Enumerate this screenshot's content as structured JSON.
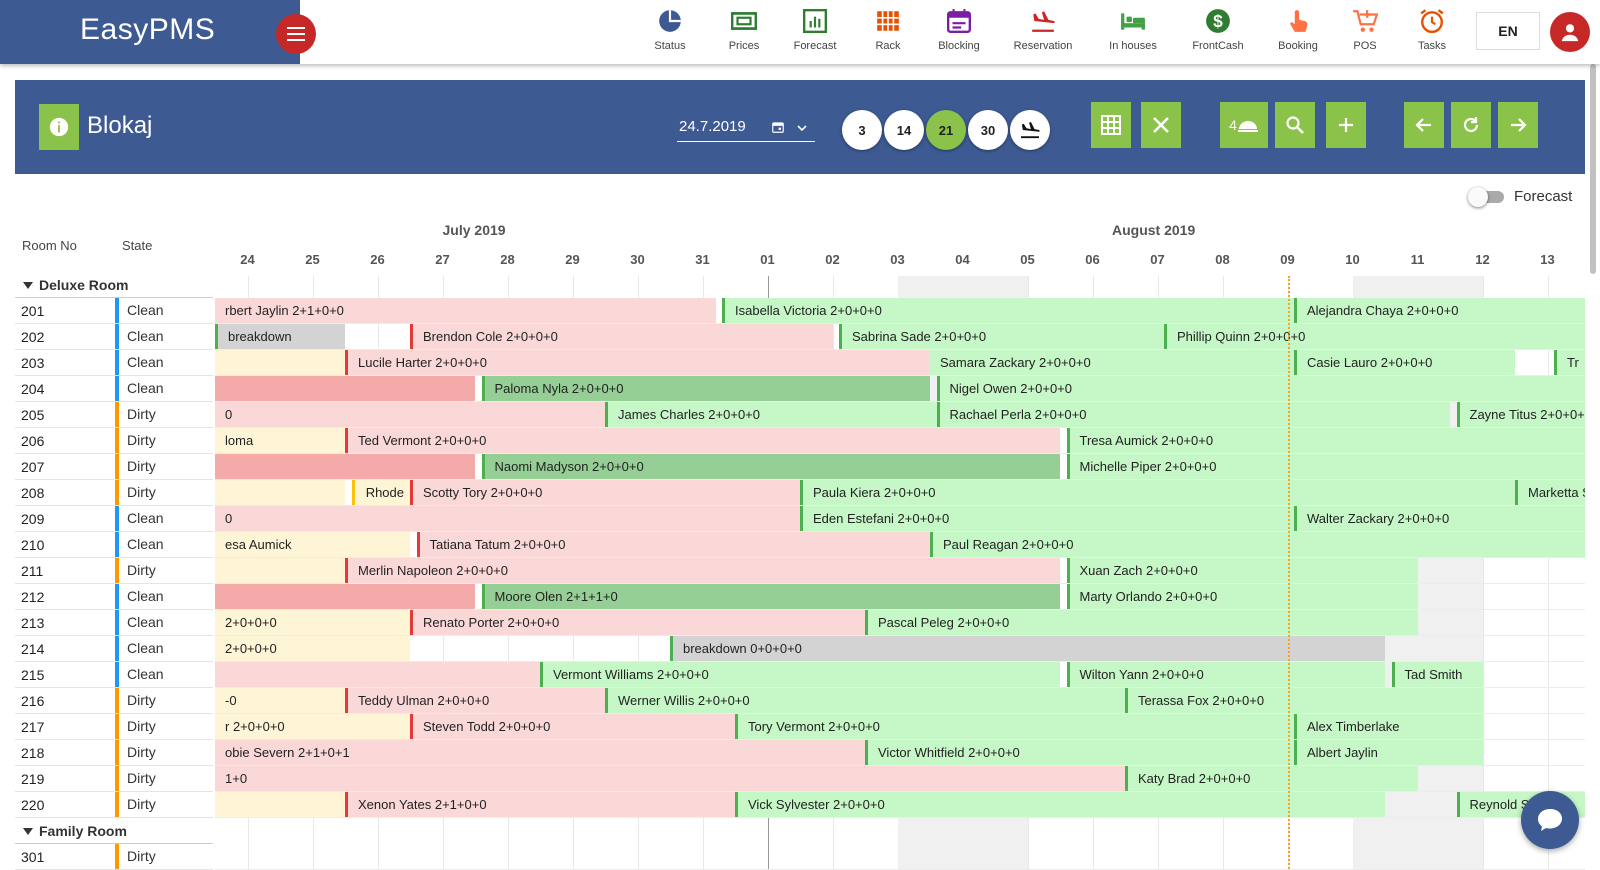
{
  "app": {
    "title": "EasyPMS",
    "language": "EN"
  },
  "nav": [
    {
      "label": "Status",
      "icon": "pie-chart-icon",
      "color": "#3d5a93"
    },
    {
      "label": "Prices",
      "icon": "prices-icon",
      "color": "#2e7d32"
    },
    {
      "label": "Forecast",
      "icon": "bar-chart-icon",
      "color": "#2e7d32"
    },
    {
      "label": "Rack",
      "icon": "rack-grid-icon",
      "color": "#e65100"
    },
    {
      "label": "Blocking",
      "icon": "calendar-icon",
      "color": "#7b1fa2"
    },
    {
      "label": "Reservation",
      "icon": "plane-landing-icon",
      "color": "#c62828"
    },
    {
      "label": "In houses",
      "icon": "bed-icon",
      "color": "#43a047"
    },
    {
      "label": "FrontCash",
      "icon": "dollar-icon",
      "color": "#2e7d32"
    },
    {
      "label": "Booking",
      "icon": "hand-tap-icon",
      "color": "#ff7043"
    },
    {
      "label": "POS",
      "icon": "cart-icon",
      "color": "#ff7043"
    },
    {
      "label": "Tasks",
      "icon": "alarm-clock-icon",
      "color": "#e65100"
    }
  ],
  "panel": {
    "title": "Blokaj",
    "date": "24.7.2019",
    "day_buttons": [
      "3",
      "14",
      "21",
      "30"
    ],
    "selected_days": "21",
    "beds_label": "4"
  },
  "forecast_label": "Forecast",
  "columns": {
    "room": "Room No",
    "state": "State"
  },
  "months": [
    {
      "label": "July 2019"
    },
    {
      "label": "August 2019"
    }
  ],
  "days": [
    "24",
    "25",
    "26",
    "27",
    "28",
    "29",
    "30",
    "31",
    "01",
    "02",
    "03",
    "04",
    "05",
    "06",
    "07",
    "08",
    "09",
    "10",
    "11",
    "12",
    "13"
  ],
  "groups": [
    {
      "name": "Deluxe Room"
    },
    {
      "name": "Family Room"
    }
  ],
  "rooms": [
    {
      "no": "201",
      "state": "Clean"
    },
    {
      "no": "202",
      "state": "Clean"
    },
    {
      "no": "203",
      "state": "Clean"
    },
    {
      "no": "204",
      "state": "Clean"
    },
    {
      "no": "205",
      "state": "Dirty"
    },
    {
      "no": "206",
      "state": "Dirty"
    },
    {
      "no": "207",
      "state": "Dirty"
    },
    {
      "no": "208",
      "state": "Dirty"
    },
    {
      "no": "209",
      "state": "Clean"
    },
    {
      "no": "210",
      "state": "Clean"
    },
    {
      "no": "211",
      "state": "Dirty"
    },
    {
      "no": "212",
      "state": "Clean"
    },
    {
      "no": "213",
      "state": "Clean"
    },
    {
      "no": "214",
      "state": "Clean"
    },
    {
      "no": "215",
      "state": "Clean"
    },
    {
      "no": "216",
      "state": "Dirty"
    },
    {
      "no": "217",
      "state": "Dirty"
    },
    {
      "no": "218",
      "state": "Dirty"
    },
    {
      "no": "219",
      "state": "Dirty"
    },
    {
      "no": "220",
      "state": "Dirty"
    },
    {
      "no": "301",
      "state": "Dirty"
    }
  ],
  "reservations": [
    {
      "room": 0,
      "from": -0.5,
      "to": 7.2,
      "label": "rbert Jaylin 2+1+0+0",
      "type": "past"
    },
    {
      "room": 0,
      "from": 7.3,
      "to": 16.1,
      "label": "Isabella Victoria 2+0+0+0",
      "type": "fut",
      "edge": "bg"
    },
    {
      "room": 0,
      "from": 16.1,
      "to": 21,
      "label": "Alejandra Chaya 2+0+0+0",
      "type": "fut",
      "edge": "bg"
    },
    {
      "room": 1,
      "from": -0.5,
      "to": 1.5,
      "label": "breakdown",
      "type": "maint",
      "edge": "bg"
    },
    {
      "room": 1,
      "from": 2.5,
      "to": 9,
      "label": "Brendon Cole 2+0+0+0",
      "type": "past",
      "edge": "bl"
    },
    {
      "room": 1,
      "from": 9.1,
      "to": 14.1,
      "label": "Sabrina Sade 2+0+0+0",
      "type": "fut",
      "edge": "bg"
    },
    {
      "room": 1,
      "from": 14.1,
      "to": 21,
      "label": "Phillip Quinn 2+0+0+0",
      "type": "fut",
      "edge": "bg"
    },
    {
      "room": 2,
      "from": -0.5,
      "to": 1.5,
      "label": "",
      "type": "opt"
    },
    {
      "room": 2,
      "from": 1.5,
      "to": 10.5,
      "label": "Lucile Harter 2+0+0+0",
      "type": "past",
      "edge": "bl"
    },
    {
      "room": 2,
      "from": 10.5,
      "to": 16.1,
      "label": "Samara Zackary 2+0+0+0",
      "type": "fut"
    },
    {
      "room": 2,
      "from": 16.1,
      "to": 19.5,
      "label": "Casie Lauro 2+0+0+0",
      "type": "fut",
      "edge": "bg"
    },
    {
      "room": 2,
      "from": 20.1,
      "to": 21,
      "label": "Tr",
      "type": "fut",
      "edge": "bg"
    },
    {
      "room": 3,
      "from": -0.5,
      "to": 3.5,
      "label": "",
      "type": "dark"
    },
    {
      "room": 3,
      "from": 3.6,
      "to": 10.5,
      "label": "Paloma Nyla 2+0+0+0",
      "type": "checked",
      "edge": "bg"
    },
    {
      "room": 3,
      "from": 10.6,
      "to": 21,
      "label": "Nigel Owen 2+0+0+0",
      "type": "fut",
      "edge": "bg"
    },
    {
      "room": 4,
      "from": -0.5,
      "to": 5.5,
      "label": "0",
      "type": "past"
    },
    {
      "room": 4,
      "from": 5.5,
      "to": 10.6,
      "label": "James Charles 2+0+0+0",
      "type": "fut",
      "edge": "bg"
    },
    {
      "room": 4,
      "from": 10.6,
      "to": 18.5,
      "label": "Rachael Perla 2+0+0+0",
      "type": "fut",
      "edge": "bg"
    },
    {
      "room": 4,
      "from": 18.6,
      "to": 21,
      "label": "Zayne Titus 2+0+0+0",
      "type": "fut",
      "edge": "bg"
    },
    {
      "room": 5,
      "from": -0.5,
      "to": 1.5,
      "label": "loma",
      "type": "opt"
    },
    {
      "room": 5,
      "from": 1.5,
      "to": 12.5,
      "label": "Ted Vermont 2+0+0+0",
      "type": "past",
      "edge": "bl"
    },
    {
      "room": 5,
      "from": 12.6,
      "to": 21,
      "label": "Tresa Aumick 2+0+0+0",
      "type": "fut",
      "edge": "bg"
    },
    {
      "room": 6,
      "from": -0.5,
      "to": 3.5,
      "label": "",
      "type": "dark"
    },
    {
      "room": 6,
      "from": 3.6,
      "to": 12.5,
      "label": "Naomi Madyson 2+0+0+0",
      "type": "checked",
      "edge": "bg"
    },
    {
      "room": 6,
      "from": 12.6,
      "to": 21,
      "label": "Michelle Piper 2+0+0+0",
      "type": "fut",
      "edge": "bg"
    },
    {
      "room": 7,
      "from": -0.5,
      "to": 1.5,
      "label": "",
      "type": "opt"
    },
    {
      "room": 7,
      "from": 1.6,
      "to": 2.5,
      "label": "Rhode",
      "type": "opt",
      "edge": "by",
      "align": "right"
    },
    {
      "room": 7,
      "from": 2.5,
      "to": 8.5,
      "label": "Scotty Tory 2+0+0+0",
      "type": "past",
      "edge": "bl"
    },
    {
      "room": 7,
      "from": 8.5,
      "to": 19.5,
      "label": "Paula Kiera 2+0+0+0",
      "type": "fut",
      "edge": "bg"
    },
    {
      "room": 7,
      "from": 19.5,
      "to": 21,
      "label": "Marketta Spri",
      "type": "fut",
      "edge": "bg"
    },
    {
      "room": 8,
      "from": -0.5,
      "to": 8.5,
      "label": "0",
      "type": "past"
    },
    {
      "room": 8,
      "from": 8.5,
      "to": 16.1,
      "label": "Eden Estefani 2+0+0+0",
      "type": "fut",
      "edge": "bg"
    },
    {
      "room": 8,
      "from": 16.1,
      "to": 21,
      "label": "Walter Zackary 2+0+0+0",
      "type": "fut",
      "edge": "bg"
    },
    {
      "room": 9,
      "from": -0.5,
      "to": 2.5,
      "label": "esa Aumick",
      "type": "opt"
    },
    {
      "room": 9,
      "from": 2.6,
      "to": 10.5,
      "label": "Tatiana Tatum 2+0+0+0",
      "type": "past",
      "edge": "bl"
    },
    {
      "room": 9,
      "from": 10.5,
      "to": 21,
      "label": "Paul Reagan 2+0+0+0",
      "type": "fut",
      "edge": "bg"
    },
    {
      "room": 10,
      "from": -0.5,
      "to": 1.5,
      "label": "",
      "type": "opt"
    },
    {
      "room": 10,
      "from": 1.5,
      "to": 12.5,
      "label": "Merlin Napoleon 2+0+0+0",
      "type": "past",
      "edge": "bl"
    },
    {
      "room": 10,
      "from": 12.6,
      "to": 18,
      "label": "Xuan Zach 2+0+0+0",
      "type": "fut",
      "edge": "bg"
    },
    {
      "room": 11,
      "from": -0.5,
      "to": 3.5,
      "label": "",
      "type": "dark"
    },
    {
      "room": 11,
      "from": 3.6,
      "to": 12.5,
      "label": "Moore Olen 2+1+1+0",
      "type": "checked",
      "edge": "bg"
    },
    {
      "room": 11,
      "from": 12.6,
      "to": 18,
      "label": "Marty Orlando 2+0+0+0",
      "type": "fut",
      "edge": "bg"
    },
    {
      "room": 12,
      "from": -0.5,
      "to": 2.5,
      "label": "2+0+0+0",
      "type": "opt"
    },
    {
      "room": 12,
      "from": 2.5,
      "to": 9.5,
      "label": "Renato Porter 2+0+0+0",
      "type": "past",
      "edge": "bl"
    },
    {
      "room": 12,
      "from": 9.5,
      "to": 18,
      "label": "Pascal Peleg 2+0+0+0",
      "type": "fut",
      "edge": "bg"
    },
    {
      "room": 13,
      "from": -0.5,
      "to": 2.5,
      "label": "2+0+0+0",
      "type": "opt"
    },
    {
      "room": 13,
      "from": 6.5,
      "to": 17.5,
      "label": "breakdown 0+0+0+0",
      "type": "maint",
      "edge": "bg"
    },
    {
      "room": 14,
      "from": -0.5,
      "to": 4.5,
      "label": "",
      "type": "past"
    },
    {
      "room": 14,
      "from": 4.5,
      "to": 12.5,
      "label": "Vermont Williams 2+0+0+0",
      "type": "fut",
      "edge": "bg"
    },
    {
      "room": 14,
      "from": 12.6,
      "to": 17.5,
      "label": "Wilton Yann 2+0+0+0",
      "type": "fut",
      "edge": "bg"
    },
    {
      "room": 14,
      "from": 17.6,
      "to": 19,
      "label": "Tad Smith",
      "type": "fut",
      "edge": "bg"
    },
    {
      "room": 15,
      "from": -0.5,
      "to": 1.5,
      "label": "-0",
      "type": "opt"
    },
    {
      "room": 15,
      "from": 1.5,
      "to": 5.5,
      "label": "Teddy Ulman 2+0+0+0",
      "type": "past",
      "edge": "bl"
    },
    {
      "room": 15,
      "from": 5.5,
      "to": 13.5,
      "label": "Werner Willis 2+0+0+0",
      "type": "fut",
      "edge": "bg"
    },
    {
      "room": 15,
      "from": 13.5,
      "to": 19,
      "label": "Terassa Fox 2+0+0+0",
      "type": "fut",
      "edge": "bg"
    },
    {
      "room": 16,
      "from": -0.5,
      "to": 2.5,
      "label": "r 2+0+0+0",
      "type": "opt"
    },
    {
      "room": 16,
      "from": 2.5,
      "to": 7.5,
      "label": "Steven Todd 2+0+0+0",
      "type": "past",
      "edge": "bl"
    },
    {
      "room": 16,
      "from": 7.5,
      "to": 16.1,
      "label": "Tory Vermont 2+0+0+0",
      "type": "fut",
      "edge": "bg"
    },
    {
      "room": 16,
      "from": 16.1,
      "to": 19,
      "label": "Alex Timberlake",
      "type": "fut",
      "edge": "bg"
    },
    {
      "room": 17,
      "from": -0.5,
      "to": 9.5,
      "label": "obie Severn 2+1+0+1",
      "type": "past"
    },
    {
      "room": 17,
      "from": 9.5,
      "to": 16.1,
      "label": "Victor Whitfield 2+0+0+0",
      "type": "fut",
      "edge": "bg"
    },
    {
      "room": 17,
      "from": 16.1,
      "to": 19,
      "label": "Albert Jaylin",
      "type": "fut",
      "edge": "bg"
    },
    {
      "room": 18,
      "from": -0.5,
      "to": 13.5,
      "label": "1+0",
      "type": "past"
    },
    {
      "room": 18,
      "from": 13.5,
      "to": 18,
      "label": "Katy Brad 2+0+0+0",
      "type": "fut",
      "edge": "bg"
    },
    {
      "room": 19,
      "from": -0.5,
      "to": 1.5,
      "label": "",
      "type": "opt"
    },
    {
      "room": 19,
      "from": 1.5,
      "to": 7.5,
      "label": "Xenon Yates 2+1+0+0",
      "type": "past",
      "edge": "bl"
    },
    {
      "room": 19,
      "from": 7.5,
      "to": 17.5,
      "label": "Vick Sylvester 2+0+0+0",
      "type": "fut",
      "edge": "bg"
    },
    {
      "room": 19,
      "from": 18.6,
      "to": 21,
      "label": "Reynold Santi",
      "type": "fut",
      "edge": "bg"
    }
  ]
}
